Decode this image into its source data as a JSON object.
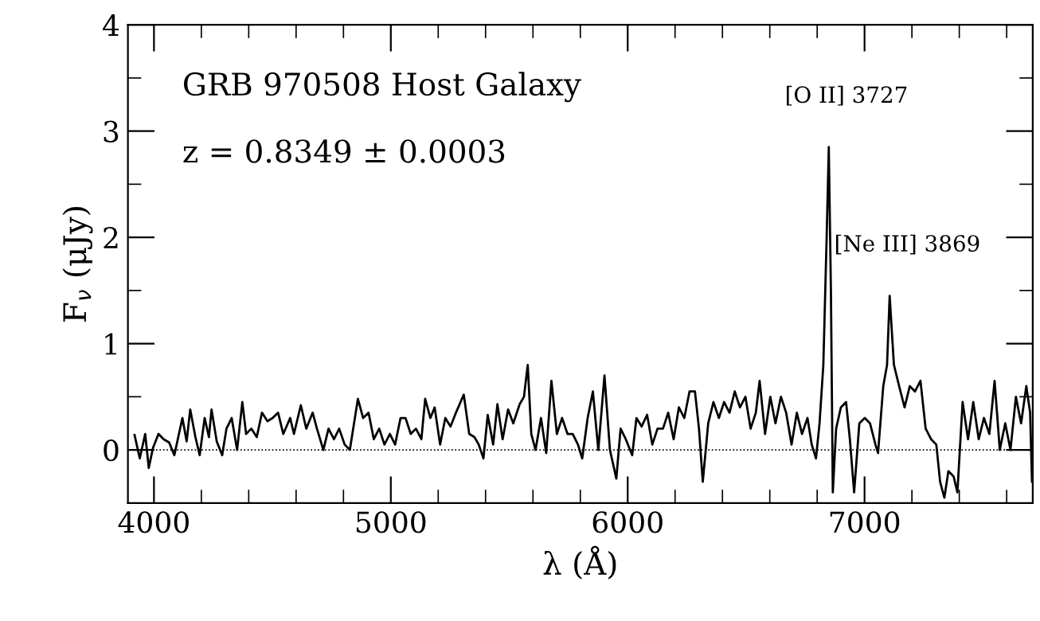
{
  "chart_data": {
    "type": "line",
    "xlabel": "λ (Å)",
    "ylabel": "F$_{ν}$ (μJy)",
    "xlim": [
      3890,
      7710
    ],
    "xticks": [
      4000,
      5000,
      6000,
      7000
    ],
    "ylim": [
      -0.5,
      4
    ],
    "yticks": [
      0,
      1,
      2,
      3,
      4
    ],
    "grid": false,
    "legend": false,
    "marker": "none",
    "line_style": "solid",
    "ref_lines": [
      {
        "axis": "y",
        "value": 0,
        "line_style": "dotted",
        "color": "#000000"
      }
    ],
    "annotations": [
      "GRB 970508 Host Galaxy",
      "z = 0.8349 ± 0.0003",
      {
        "text": "[O II] 3727",
        "x": 6849,
        "y": 2.85
      },
      {
        "text": "[Ne III] 3869",
        "x": 7106,
        "y": 1.45
      }
    ],
    "series": [
      {
        "color": "#000000",
        "x": [
          3918,
          3940,
          3963,
          3978,
          3996,
          4019,
          4041,
          4064,
          4086,
          4120,
          4138,
          4153,
          4175,
          4193,
          4214,
          4232,
          4243,
          4265,
          4288,
          4306,
          4328,
          4351,
          4373,
          4389,
          4411,
          4434,
          4456,
          4479,
          4501,
          4524,
          4546,
          4575,
          4591,
          4620,
          4643,
          4670,
          4688,
          4715,
          4737,
          4760,
          4782,
          4805,
          4827,
          4861,
          4883,
          4906,
          4928,
          4951,
          4973,
          4996,
          5018,
          5041,
          5062,
          5084,
          5106,
          5129,
          5145,
          5167,
          5185,
          5208,
          5230,
          5252,
          5275,
          5308,
          5331,
          5353,
          5371,
          5391,
          5409,
          5432,
          5450,
          5472,
          5495,
          5517,
          5544,
          5562,
          5578,
          5593,
          5611,
          5634,
          5656,
          5678,
          5701,
          5723,
          5746,
          5768,
          5790,
          5808,
          5831,
          5853,
          5876,
          5902,
          5925,
          5952,
          5970,
          5992,
          6019,
          6037,
          6059,
          6082,
          6104,
          6126,
          6149,
          6171,
          6194,
          6216,
          6239,
          6261,
          6284,
          6301,
          6317,
          6340,
          6362,
          6385,
          6407,
          6430,
          6452,
          6474,
          6497,
          6519,
          6541,
          6557,
          6580,
          6602,
          6624,
          6647,
          6669,
          6692,
          6714,
          6736,
          6759,
          6777,
          6795,
          6810,
          6826,
          6840,
          6849,
          6858,
          6866,
          6880,
          6900,
          6922,
          6938,
          6956,
          6978,
          7001,
          7023,
          7046,
          7057,
          7079,
          7095,
          7106,
          7124,
          7146,
          7169,
          7191,
          7213,
          7236,
          7258,
          7281,
          7303,
          7319,
          7337,
          7354,
          7376,
          7392,
          7414,
          7437,
          7459,
          7482,
          7504,
          7527,
          7549,
          7571,
          7594,
          7616,
          7639,
          7661,
          7683,
          7699,
          7707
        ],
        "values": [
          0.14,
          -0.08,
          0.15,
          -0.17,
          0.02,
          0.15,
          0.1,
          0.07,
          -0.05,
          0.3,
          0.08,
          0.38,
          0.12,
          -0.05,
          0.3,
          0.12,
          0.38,
          0.08,
          -0.05,
          0.2,
          0.3,
          0.0,
          0.45,
          0.15,
          0.2,
          0.12,
          0.35,
          0.27,
          0.3,
          0.35,
          0.15,
          0.3,
          0.15,
          0.42,
          0.2,
          0.35,
          0.2,
          0.0,
          0.2,
          0.1,
          0.2,
          0.05,
          0.0,
          0.48,
          0.3,
          0.35,
          0.1,
          0.2,
          0.05,
          0.15,
          0.05,
          0.3,
          0.3,
          0.15,
          0.2,
          0.1,
          0.48,
          0.3,
          0.4,
          0.05,
          0.3,
          0.22,
          0.35,
          0.52,
          0.15,
          0.12,
          0.05,
          -0.08,
          0.33,
          0.05,
          0.43,
          0.1,
          0.38,
          0.25,
          0.43,
          0.5,
          0.8,
          0.15,
          0.0,
          0.3,
          -0.03,
          0.65,
          0.15,
          0.3,
          0.15,
          0.15,
          0.05,
          -0.08,
          0.3,
          0.55,
          0.0,
          0.7,
          0.0,
          -0.27,
          0.2,
          0.1,
          -0.05,
          0.3,
          0.22,
          0.33,
          0.05,
          0.2,
          0.2,
          0.35,
          0.1,
          0.4,
          0.3,
          0.55,
          0.55,
          0.2,
          -0.3,
          0.25,
          0.45,
          0.3,
          0.45,
          0.35,
          0.55,
          0.4,
          0.5,
          0.2,
          0.35,
          0.65,
          0.15,
          0.5,
          0.25,
          0.5,
          0.35,
          0.05,
          0.35,
          0.15,
          0.3,
          0.05,
          -0.08,
          0.25,
          0.8,
          2.0,
          2.85,
          1.5,
          -0.4,
          0.2,
          0.4,
          0.45,
          0.1,
          -0.4,
          0.25,
          0.3,
          0.25,
          0.05,
          -0.03,
          0.6,
          0.8,
          1.45,
          0.8,
          0.6,
          0.4,
          0.6,
          0.55,
          0.65,
          0.2,
          0.1,
          0.05,
          -0.3,
          -0.45,
          -0.2,
          -0.25,
          -0.4,
          0.45,
          0.1,
          0.45,
          0.1,
          0.3,
          0.15,
          0.65,
          0.0,
          0.25,
          0.0,
          0.5,
          0.25,
          0.6,
          0.35,
          -0.3
        ]
      }
    ]
  }
}
